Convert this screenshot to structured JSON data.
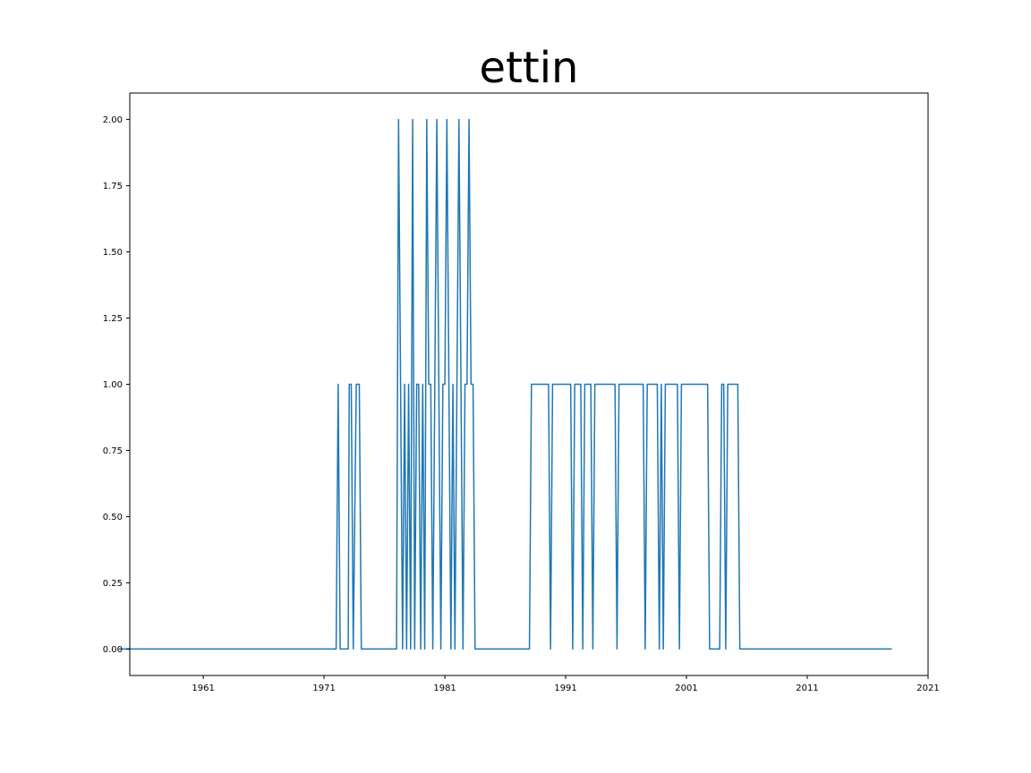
{
  "chart_data": {
    "type": "line",
    "title": "ettin",
    "xlabel": "",
    "ylabel": "",
    "x_scale": "date",
    "xlim": [
      "1954-12-01",
      "2021-01-01"
    ],
    "ylim": [
      -0.1,
      2.1
    ],
    "x_ticks": [
      "1961",
      "1971",
      "1981",
      "1991",
      "2001",
      "2011",
      "2021"
    ],
    "y_ticks": [
      "0.00",
      "0.25",
      "0.50",
      "0.75",
      "1.00",
      "1.25",
      "1.50",
      "1.75",
      "2.00"
    ],
    "grid": false,
    "series": [
      {
        "color": "#1f77b4",
        "points": [
          [
            "1954-01",
            0
          ],
          [
            "1972-01",
            0
          ],
          [
            "1972-03",
            1
          ],
          [
            "1972-05",
            0
          ],
          [
            "1973-01",
            0
          ],
          [
            "1973-02",
            1
          ],
          [
            "1973-04",
            1
          ],
          [
            "1973-06",
            0
          ],
          [
            "1973-09",
            1
          ],
          [
            "1973-12",
            1
          ],
          [
            "1974-02",
            0
          ],
          [
            "1977-01",
            0
          ],
          [
            "1977-03",
            2
          ],
          [
            "1977-05",
            1
          ],
          [
            "1977-07",
            0
          ],
          [
            "1977-09",
            1
          ],
          [
            "1977-11",
            0
          ],
          [
            "1978-01",
            1
          ],
          [
            "1978-03",
            0
          ],
          [
            "1978-05",
            2
          ],
          [
            "1978-07",
            0
          ],
          [
            "1978-09",
            1
          ],
          [
            "1978-11",
            1
          ],
          [
            "1979-01",
            0
          ],
          [
            "1979-03",
            1
          ],
          [
            "1979-05",
            0
          ],
          [
            "1979-07",
            2
          ],
          [
            "1979-09",
            1
          ],
          [
            "1979-11",
            1
          ],
          [
            "1980-01",
            0
          ],
          [
            "1980-03",
            1
          ],
          [
            "1980-05",
            2
          ],
          [
            "1980-07",
            1
          ],
          [
            "1980-09",
            0
          ],
          [
            "1980-11",
            1
          ],
          [
            "1981-01",
            1
          ],
          [
            "1981-03",
            2
          ],
          [
            "1981-05",
            1
          ],
          [
            "1981-07",
            0
          ],
          [
            "1981-09",
            1
          ],
          [
            "1981-11",
            0
          ],
          [
            "1982-01",
            1
          ],
          [
            "1982-03",
            2
          ],
          [
            "1982-05",
            1
          ],
          [
            "1982-07",
            0
          ],
          [
            "1982-09",
            1
          ],
          [
            "1982-11",
            1
          ],
          [
            "1983-01",
            2
          ],
          [
            "1983-03",
            1
          ],
          [
            "1983-05",
            1
          ],
          [
            "1983-07",
            0
          ],
          [
            "1988-01",
            0
          ],
          [
            "1988-03",
            1
          ],
          [
            "1989-08",
            1
          ],
          [
            "1989-10",
            0
          ],
          [
            "1989-12",
            1
          ],
          [
            "1991-06",
            1
          ],
          [
            "1991-08",
            0
          ],
          [
            "1991-10",
            1
          ],
          [
            "1992-04",
            1
          ],
          [
            "1992-06",
            0
          ],
          [
            "1992-08",
            1
          ],
          [
            "1993-02",
            1
          ],
          [
            "1993-04",
            0
          ],
          [
            "1993-06",
            1
          ],
          [
            "1995-02",
            1
          ],
          [
            "1995-04",
            0
          ],
          [
            "1995-06",
            1
          ],
          [
            "1997-06",
            1
          ],
          [
            "1997-08",
            0
          ],
          [
            "1997-10",
            1
          ],
          [
            "1998-08",
            1
          ],
          [
            "1998-10",
            0
          ],
          [
            "1998-12",
            1
          ],
          [
            "1999-02",
            0
          ],
          [
            "1999-04",
            1
          ],
          [
            "2000-04",
            1
          ],
          [
            "2000-06",
            0
          ],
          [
            "2000-08",
            1
          ],
          [
            "2002-10",
            1
          ],
          [
            "2002-12",
            0
          ],
          [
            "2003-10",
            0
          ],
          [
            "2003-12",
            1
          ],
          [
            "2004-02",
            1
          ],
          [
            "2004-04",
            0
          ],
          [
            "2004-06",
            1
          ],
          [
            "2005-04",
            1
          ],
          [
            "2005-06",
            0
          ],
          [
            "2018-01",
            0
          ]
        ]
      }
    ]
  }
}
